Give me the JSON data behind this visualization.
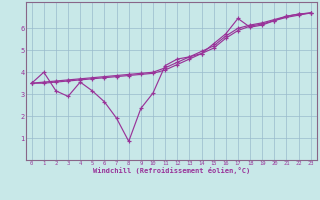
{
  "xlabel": "Windchill (Refroidissement éolien,°C)",
  "bg_color": "#c8e8e8",
  "line_color": "#993399",
  "grid_color": "#99bbcc",
  "axis_color": "#886688",
  "xlim": [
    -0.5,
    23.5
  ],
  "ylim": [
    0,
    7.2
  ],
  "xticks": [
    0,
    1,
    2,
    3,
    4,
    5,
    6,
    7,
    8,
    9,
    10,
    11,
    12,
    13,
    14,
    15,
    16,
    17,
    18,
    19,
    20,
    21,
    22,
    23
  ],
  "yticks": [
    1,
    2,
    3,
    4,
    5,
    6
  ],
  "line1_x": [
    0,
    1,
    2,
    3,
    4,
    5,
    6,
    7,
    8,
    9,
    10,
    11,
    12,
    13,
    14,
    15,
    16,
    17,
    18,
    19,
    20,
    21,
    22,
    23
  ],
  "line1_y": [
    3.5,
    4.0,
    3.15,
    2.9,
    3.55,
    3.15,
    2.65,
    1.9,
    0.85,
    2.35,
    3.05,
    4.3,
    4.6,
    4.7,
    4.85,
    5.3,
    5.75,
    6.45,
    6.05,
    6.15,
    6.35,
    6.55,
    6.65,
    6.7
  ],
  "line2_x": [
    0,
    1,
    2,
    3,
    4,
    5,
    6,
    7,
    8,
    9,
    10,
    11,
    12,
    13,
    14,
    15,
    16,
    17,
    18,
    19,
    20,
    21,
    22,
    23
  ],
  "line2_y": [
    3.5,
    3.55,
    3.6,
    3.65,
    3.7,
    3.75,
    3.8,
    3.85,
    3.9,
    3.95,
    4.0,
    4.2,
    4.45,
    4.7,
    4.95,
    5.2,
    5.65,
    6.0,
    6.15,
    6.25,
    6.4,
    6.55,
    6.65,
    6.7
  ],
  "line3_x": [
    0,
    1,
    2,
    3,
    4,
    5,
    6,
    7,
    8,
    9,
    10,
    11,
    12,
    13,
    14,
    15,
    16,
    17,
    18,
    19,
    20,
    21,
    22,
    23
  ],
  "line3_y": [
    3.5,
    3.5,
    3.55,
    3.6,
    3.65,
    3.7,
    3.75,
    3.8,
    3.85,
    3.9,
    3.95,
    4.1,
    4.35,
    4.6,
    4.85,
    5.1,
    5.55,
    5.9,
    6.1,
    6.2,
    6.35,
    6.5,
    6.6,
    6.7
  ]
}
